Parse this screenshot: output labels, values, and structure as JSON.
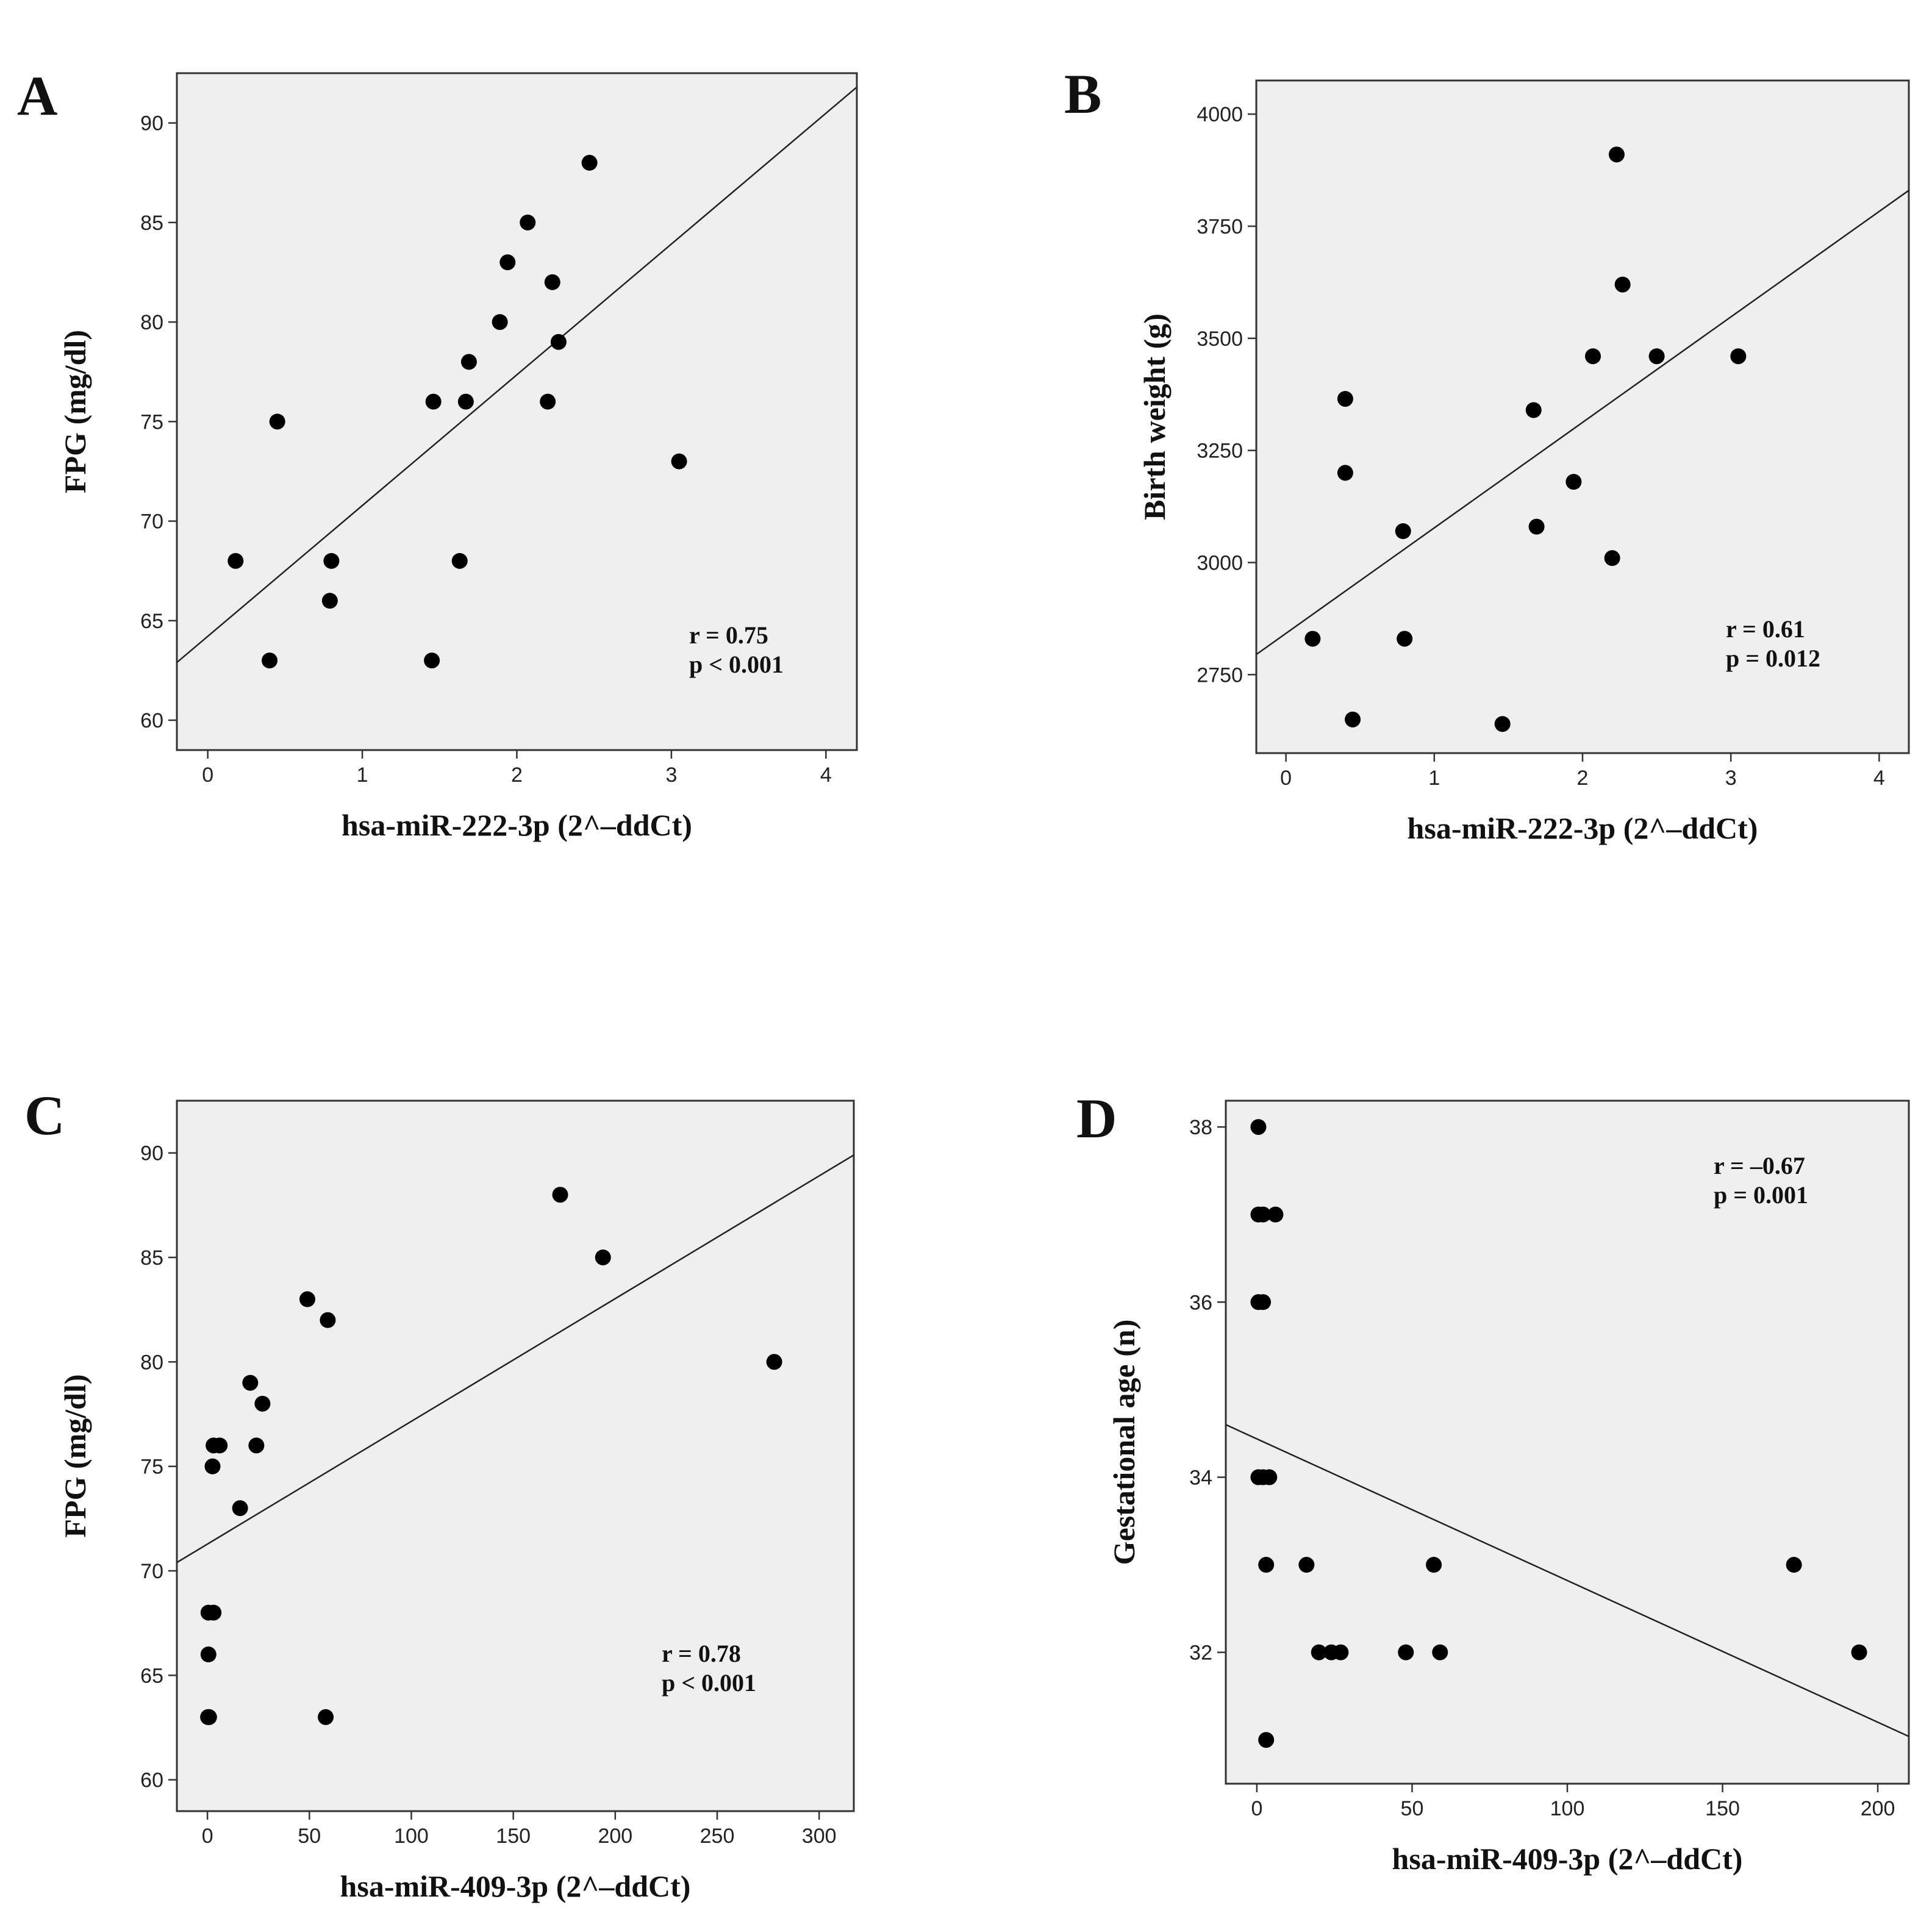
{
  "chart_data": [
    {
      "panel": "A",
      "type": "scatter",
      "xlabel": "hsa-miR-222-3p (2^–ddCt)",
      "ylabel": "FPG (mg/dl)",
      "xlim": [
        -0.2,
        4.2
      ],
      "ylim": [
        58.5,
        92.5
      ],
      "xticks": [
        0,
        1,
        2,
        3,
        4
      ],
      "yticks": [
        60,
        65,
        70,
        75,
        80,
        85,
        90
      ],
      "points": [
        {
          "x": 0.18,
          "y": 68
        },
        {
          "x": 0.4,
          "y": 63
        },
        {
          "x": 0.45,
          "y": 75
        },
        {
          "x": 0.79,
          "y": 66
        },
        {
          "x": 0.8,
          "y": 68
        },
        {
          "x": 1.45,
          "y": 63
        },
        {
          "x": 1.46,
          "y": 76
        },
        {
          "x": 1.63,
          "y": 68
        },
        {
          "x": 1.67,
          "y": 76
        },
        {
          "x": 1.69,
          "y": 78
        },
        {
          "x": 1.89,
          "y": 80
        },
        {
          "x": 1.94,
          "y": 83
        },
        {
          "x": 2.07,
          "y": 85
        },
        {
          "x": 2.2,
          "y": 76
        },
        {
          "x": 2.23,
          "y": 82
        },
        {
          "x": 2.27,
          "y": 79
        },
        {
          "x": 2.47,
          "y": 88
        },
        {
          "x": 3.05,
          "y": 73
        }
      ],
      "fit": {
        "x": [
          -0.2,
          4.2
        ],
        "y": [
          62.9,
          91.8
        ]
      },
      "annotation": [
        "r = 0.75",
        "p < 0.001"
      ]
    },
    {
      "panel": "B",
      "type": "scatter",
      "xlabel": "hsa-miR-222-3p (2^–ddCt)",
      "ylabel": "Birth weight (g)",
      "xlim": [
        -0.2,
        4.2
      ],
      "ylim": [
        2575,
        4075
      ],
      "xticks": [
        0,
        1,
        2,
        3,
        4
      ],
      "yticks": [
        2750,
        3000,
        3250,
        3500,
        3750,
        4000
      ],
      "points": [
        {
          "x": 0.18,
          "y": 2830
        },
        {
          "x": 0.4,
          "y": 3200
        },
        {
          "x": 0.4,
          "y": 3365
        },
        {
          "x": 0.45,
          "y": 2650
        },
        {
          "x": 0.79,
          "y": 3070
        },
        {
          "x": 0.8,
          "y": 2830
        },
        {
          "x": 1.46,
          "y": 2640
        },
        {
          "x": 1.67,
          "y": 3340
        },
        {
          "x": 1.69,
          "y": 3080
        },
        {
          "x": 1.94,
          "y": 3180
        },
        {
          "x": 2.07,
          "y": 3460
        },
        {
          "x": 2.2,
          "y": 3010
        },
        {
          "x": 2.23,
          "y": 3910
        },
        {
          "x": 2.27,
          "y": 3620
        },
        {
          "x": 2.5,
          "y": 3460
        },
        {
          "x": 3.05,
          "y": 3460
        }
      ],
      "fit": {
        "x": [
          -0.2,
          4.2
        ],
        "y": [
          2795,
          3830
        ]
      },
      "annotation": [
        "r = 0.61",
        "p = 0.012"
      ]
    },
    {
      "panel": "C",
      "type": "scatter",
      "xlabel": "hsa-miR-409-3p (2^–ddCt)",
      "ylabel": "FPG (mg/dl)",
      "xlim": [
        -15,
        317
      ],
      "ylim": [
        58.5,
        92.5
      ],
      "xticks": [
        0,
        50,
        100,
        150,
        200,
        250,
        300
      ],
      "yticks": [
        60,
        65,
        70,
        75,
        80,
        85,
        90
      ],
      "points": [
        {
          "x": 0.3,
          "y": 63
        },
        {
          "x": 0.8,
          "y": 63
        },
        {
          "x": 0.5,
          "y": 66
        },
        {
          "x": 0.5,
          "y": 68
        },
        {
          "x": 3,
          "y": 68
        },
        {
          "x": 2.5,
          "y": 75
        },
        {
          "x": 3,
          "y": 76
        },
        {
          "x": 6,
          "y": 76
        },
        {
          "x": 16,
          "y": 73
        },
        {
          "x": 21,
          "y": 79
        },
        {
          "x": 24,
          "y": 76
        },
        {
          "x": 27,
          "y": 78
        },
        {
          "x": 49,
          "y": 83
        },
        {
          "x": 58,
          "y": 63
        },
        {
          "x": 59,
          "y": 82
        },
        {
          "x": 173,
          "y": 88
        },
        {
          "x": 194,
          "y": 85
        },
        {
          "x": 278,
          "y": 80
        }
      ],
      "fit": {
        "x": [
          -15,
          317
        ],
        "y": [
          70.4,
          89.9
        ]
      },
      "annotation": [
        "r = 0.78",
        "p < 0.001"
      ]
    },
    {
      "panel": "D",
      "type": "scatter",
      "xlabel": "hsa-miR-409-3p (2^–ddCt)",
      "ylabel": "Gestational age (n)",
      "xlim": [
        -10,
        210
      ],
      "ylim": [
        30.5,
        38.3
      ],
      "xticks": [
        0,
        50,
        100,
        150,
        200
      ],
      "yticks": [
        32,
        34,
        36,
        38
      ],
      "points": [
        {
          "x": 0.5,
          "y": 38
        },
        {
          "x": 0.5,
          "y": 37
        },
        {
          "x": 2,
          "y": 37
        },
        {
          "x": 6,
          "y": 37
        },
        {
          "x": 0.5,
          "y": 36
        },
        {
          "x": 2,
          "y": 36
        },
        {
          "x": 0.5,
          "y": 34
        },
        {
          "x": 2,
          "y": 34
        },
        {
          "x": 4,
          "y": 34
        },
        {
          "x": 3,
          "y": 33
        },
        {
          "x": 16,
          "y": 33
        },
        {
          "x": 57,
          "y": 33
        },
        {
          "x": 173,
          "y": 33
        },
        {
          "x": 20,
          "y": 32
        },
        {
          "x": 24,
          "y": 32
        },
        {
          "x": 27,
          "y": 32
        },
        {
          "x": 48,
          "y": 32
        },
        {
          "x": 59,
          "y": 32
        },
        {
          "x": 194,
          "y": 32
        },
        {
          "x": 3,
          "y": 31
        }
      ],
      "fit": {
        "x": [
          -10,
          210
        ],
        "y": [
          34.6,
          31.04
        ]
      },
      "annotation": [
        "r = –0.67",
        "p = 0.001"
      ]
    }
  ]
}
